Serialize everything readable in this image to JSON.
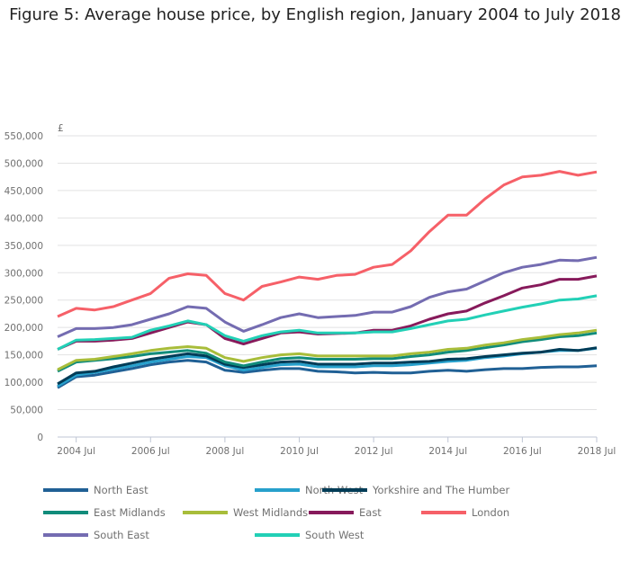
{
  "chart_data": {
    "type": "line",
    "title": "Figure 5: Average house price, by English region, January 2004 to July 2018",
    "ylabel": "£",
    "ylim": [
      0,
      550000
    ],
    "yticks": [
      0,
      50000,
      100000,
      150000,
      200000,
      250000,
      300000,
      350000,
      400000,
      450000,
      500000,
      550000
    ],
    "ytick_labels": [
      "0",
      "50,000",
      "100,000",
      "150,000",
      "200,000",
      "250,000",
      "300,000",
      "350,000",
      "400,000",
      "450,000",
      "500,000",
      "550,000"
    ],
    "xlim": [
      "2004-01",
      "2018-07"
    ],
    "xticks": [
      "2004-07",
      "2006-07",
      "2008-07",
      "2010-07",
      "2012-07",
      "2014-07",
      "2016-07",
      "2018-07"
    ],
    "xtick_labels": [
      "2004 Jul",
      "2006 Jul",
      "2008 Jul",
      "2010 Jul",
      "2012 Jul",
      "2014 Jul",
      "2016 Jul",
      "2018 Jul"
    ],
    "grid": "horizontal",
    "legend_position": "bottom",
    "x": [
      "2004-01",
      "2004-07",
      "2005-01",
      "2005-07",
      "2006-01",
      "2006-07",
      "2007-01",
      "2007-07",
      "2008-01",
      "2008-07",
      "2009-01",
      "2009-07",
      "2010-01",
      "2010-07",
      "2011-01",
      "2011-07",
      "2012-01",
      "2012-07",
      "2013-01",
      "2013-07",
      "2014-01",
      "2014-07",
      "2015-01",
      "2015-07",
      "2016-01",
      "2016-07",
      "2017-01",
      "2017-07",
      "2018-01",
      "2018-07"
    ],
    "series": [
      {
        "name": "North East",
        "color": "#206095",
        "values": [
          90000,
          110000,
          113000,
          119000,
          125000,
          132000,
          137000,
          140000,
          137000,
          122000,
          118000,
          122000,
          125000,
          125000,
          120000,
          119000,
          117000,
          118000,
          117000,
          117000,
          120000,
          122000,
          120000,
          123000,
          125000,
          125000,
          127000,
          128000,
          128000,
          130000
        ]
      },
      {
        "name": "North West",
        "color": "#27a0cc",
        "values": [
          93000,
          113000,
          118000,
          124000,
          130000,
          137000,
          142000,
          147000,
          145000,
          130000,
          122000,
          127000,
          132000,
          133000,
          128000,
          128000,
          128000,
          130000,
          130000,
          132000,
          135000,
          138000,
          140000,
          145000,
          148000,
          152000,
          155000,
          158000,
          158000,
          162000
        ]
      },
      {
        "name": "Yorkshire and The Humber",
        "color": "#003c57",
        "values": [
          97000,
          117000,
          120000,
          128000,
          135000,
          142000,
          147000,
          152000,
          148000,
          133000,
          127000,
          132000,
          137000,
          138000,
          133000,
          133000,
          133000,
          135000,
          135000,
          137000,
          138000,
          142000,
          143000,
          147000,
          150000,
          153000,
          155000,
          160000,
          158000,
          163000
        ]
      },
      {
        "name": "East Midlands",
        "color": "#118c7b",
        "values": [
          120000,
          137000,
          140000,
          143000,
          147000,
          152000,
          155000,
          158000,
          153000,
          137000,
          130000,
          137000,
          143000,
          145000,
          142000,
          142000,
          142000,
          143000,
          143000,
          147000,
          150000,
          155000,
          158000,
          163000,
          168000,
          174000,
          178000,
          183000,
          185000,
          190000
        ]
      },
      {
        "name": "West Midlands",
        "color": "#a8bd3a",
        "values": [
          123000,
          140000,
          142000,
          147000,
          152000,
          158000,
          162000,
          165000,
          162000,
          145000,
          138000,
          145000,
          150000,
          152000,
          148000,
          148000,
          148000,
          148000,
          148000,
          152000,
          155000,
          160000,
          162000,
          168000,
          172000,
          178000,
          182000,
          187000,
          190000,
          195000
        ]
      },
      {
        "name": "East",
        "color": "#871a5b",
        "values": [
          160000,
          175000,
          175000,
          177000,
          180000,
          190000,
          200000,
          210000,
          205000,
          180000,
          170000,
          180000,
          190000,
          192000,
          188000,
          189000,
          190000,
          195000,
          195000,
          203000,
          215000,
          225000,
          230000,
          245000,
          258000,
          272000,
          278000,
          288000,
          288000,
          294000
        ]
      },
      {
        "name": "London",
        "color": "#f66068",
        "values": [
          220000,
          235000,
          232000,
          238000,
          250000,
          262000,
          290000,
          298000,
          295000,
          262000,
          250000,
          275000,
          283000,
          292000,
          288000,
          295000,
          297000,
          310000,
          315000,
          340000,
          375000,
          405000,
          405000,
          435000,
          460000,
          475000,
          478000,
          485000,
          478000,
          484000
        ]
      },
      {
        "name": "South East",
        "color": "#746cb1",
        "values": [
          183000,
          198000,
          198000,
          200000,
          205000,
          215000,
          225000,
          238000,
          235000,
          210000,
          193000,
          205000,
          218000,
          225000,
          218000,
          220000,
          222000,
          228000,
          228000,
          238000,
          255000,
          265000,
          270000,
          285000,
          300000,
          310000,
          315000,
          323000,
          322000,
          328000
        ]
      },
      {
        "name": "South West",
        "color": "#22d0b6",
        "values": [
          160000,
          177000,
          178000,
          180000,
          182000,
          195000,
          203000,
          212000,
          205000,
          185000,
          175000,
          185000,
          192000,
          195000,
          190000,
          190000,
          190000,
          192000,
          192000,
          198000,
          205000,
          212000,
          215000,
          223000,
          230000,
          237000,
          243000,
          250000,
          252000,
          258000
        ]
      }
    ]
  }
}
